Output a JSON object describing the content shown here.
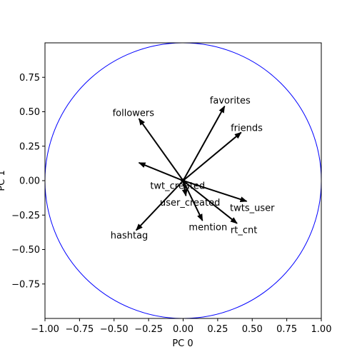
{
  "chart_data": {
    "type": "scatter",
    "title": "",
    "xlabel": "PC 0",
    "ylabel": "PC 1",
    "xlim": [
      -1.0,
      1.0
    ],
    "ylim": [
      -1.0,
      1.0
    ],
    "grid": false,
    "x_ticks": [
      "−1.00",
      "−0.75",
      "−0.50",
      "−0.25",
      "0.00",
      "0.25",
      "0.50",
      "0.75",
      "1.00"
    ],
    "x_tick_values": [
      -1.0,
      -0.75,
      -0.5,
      -0.25,
      0.0,
      0.25,
      0.5,
      0.75,
      1.0
    ],
    "y_ticks": [
      "−0.75",
      "−0.50",
      "−0.25",
      "0.00",
      "0.25",
      "0.50",
      "0.75"
    ],
    "y_tick_values": [
      -0.75,
      -0.5,
      -0.25,
      0.0,
      0.25,
      0.5,
      0.75
    ],
    "circle": {
      "center": [
        0,
        0
      ],
      "radius": 1.0,
      "color": "#0000ff"
    },
    "arrow_color": "#000000",
    "vectors": [
      {
        "name": "favorites",
        "x": 0.3,
        "y": 0.54,
        "label_x": 0.34,
        "label_y": 0.58
      },
      {
        "name": "friends",
        "x": 0.42,
        "y": 0.35,
        "label_x": 0.46,
        "label_y": 0.38
      },
      {
        "name": "followers",
        "x": -0.32,
        "y": 0.45,
        "label_x": -0.36,
        "label_y": 0.49
      },
      {
        "name": "",
        "x": -0.32,
        "y": 0.13,
        "label_x": 0,
        "label_y": 0
      },
      {
        "name": "twts_user",
        "x": 0.46,
        "y": -0.15,
        "label_x": 0.5,
        "label_y": -0.2
      },
      {
        "name": "rt_cnt",
        "x": 0.39,
        "y": -0.31,
        "label_x": 0.44,
        "label_y": -0.36
      },
      {
        "name": "mention",
        "x": 0.14,
        "y": -0.29,
        "label_x": 0.18,
        "label_y": -0.34
      },
      {
        "name": "hashtag",
        "x": -0.34,
        "y": -0.36,
        "label_x": -0.39,
        "label_y": -0.4
      },
      {
        "name": "twt_created",
        "x": 0.01,
        "y": -0.03,
        "label_x": -0.04,
        "label_y": -0.04
      },
      {
        "name": "user_created",
        "x": 0.02,
        "y": -0.11,
        "label_x": 0.05,
        "label_y": -0.16
      }
    ]
  }
}
